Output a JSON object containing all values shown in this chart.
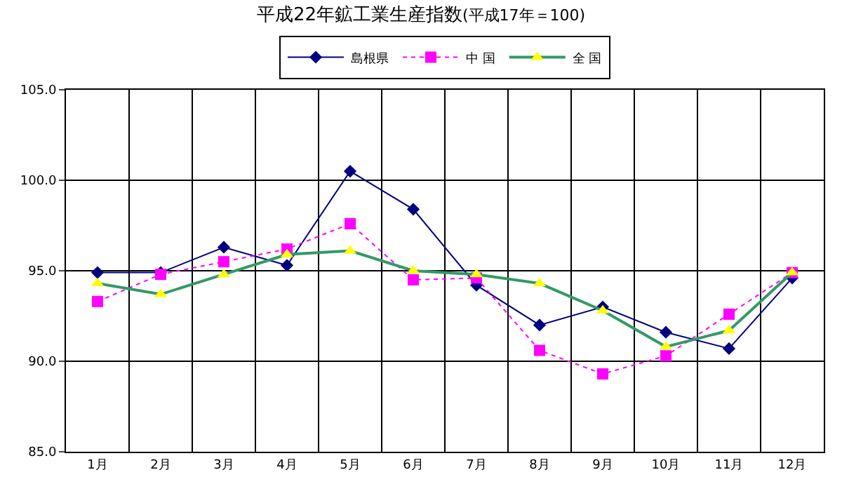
{
  "chart_data": {
    "type": "line",
    "title": "平成22年鉱工業生産指数",
    "subtitle": "(平成17年＝100)",
    "categories": [
      "1月",
      "2月",
      "3月",
      "4月",
      "5月",
      "6月",
      "7月",
      "8月",
      "9月",
      "10月",
      "11月",
      "12月"
    ],
    "series": [
      {
        "name": "島根県",
        "color": "#000080",
        "marker": "diamond",
        "line_style": "solid",
        "values": [
          94.9,
          94.9,
          96.3,
          95.3,
          100.5,
          98.4,
          94.2,
          92.0,
          93.0,
          91.6,
          90.7,
          94.6
        ]
      },
      {
        "name": "中 国",
        "color": "#ff00ff",
        "marker": "square",
        "line_style": "dotted",
        "values": [
          93.3,
          94.8,
          95.5,
          96.2,
          97.6,
          94.5,
          94.6,
          90.6,
          89.3,
          90.3,
          92.6,
          94.9
        ]
      },
      {
        "name": "全 国",
        "color": "#339966",
        "colors": [
          "#ffff00",
          "#ffff00",
          "#ffff00",
          "#ffff00",
          "#ffff00",
          "#ffff00",
          "#ffff00",
          "#ffff00",
          "#ffff00",
          "#ffff00",
          "#ffff00",
          "#ffff00"
        ],
        "marker": "triangle",
        "line_style": "solid",
        "values": [
          94.3,
          93.7,
          94.8,
          95.9,
          96.1,
          95.0,
          94.8,
          94.3,
          92.8,
          90.8,
          91.7,
          94.9
        ]
      }
    ],
    "ylim": [
      85,
      105
    ],
    "yticks": [
      {
        "value": 85,
        "label": "85.0"
      },
      {
        "value": 90,
        "label": "90.0"
      },
      {
        "value": 95,
        "label": "95.0"
      },
      {
        "value": 100,
        "label": "100.0"
      },
      {
        "value": 105,
        "label": "105.0"
      }
    ],
    "grid": true,
    "legend": "top"
  }
}
